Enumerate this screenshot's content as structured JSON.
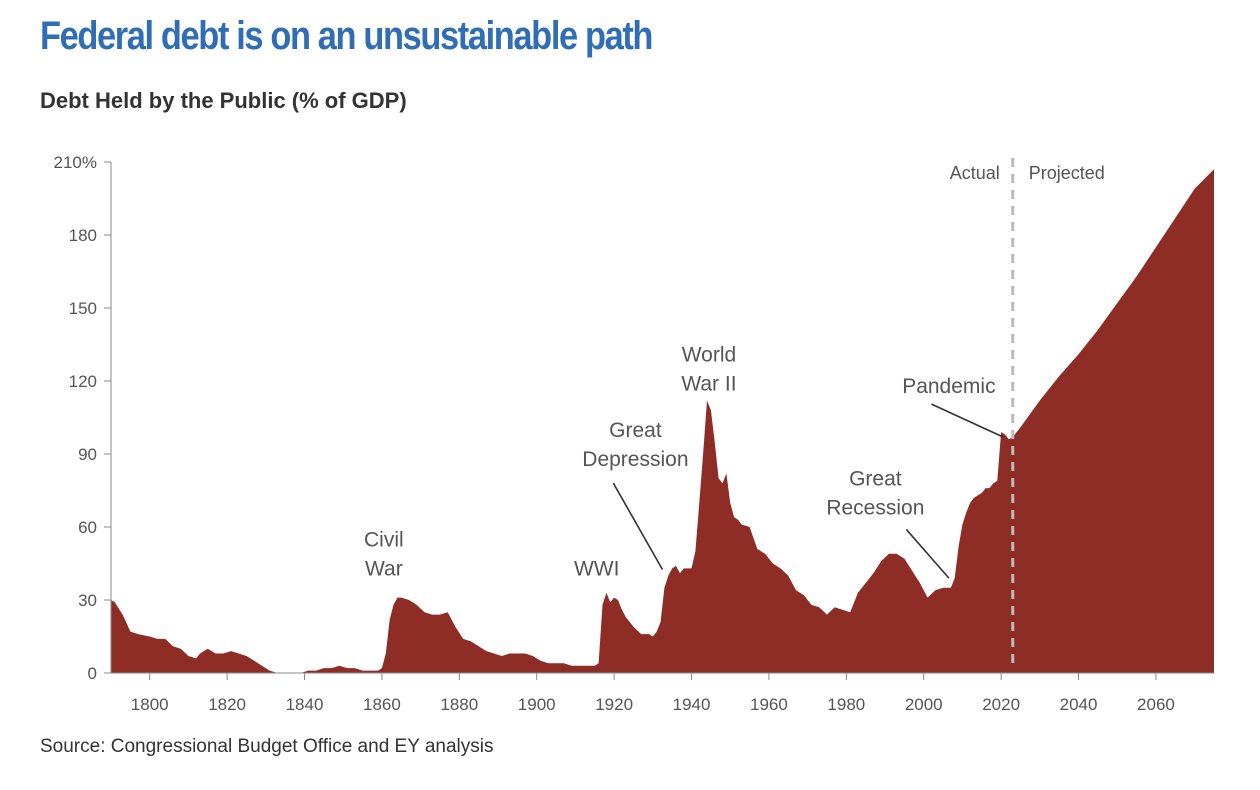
{
  "chart_data": {
    "type": "area",
    "title": "Federal debt is on an unsustainable path",
    "subtitle": "Debt Held by the Public (% of GDP)",
    "source": "Source: Congressional Budget Office and EY analysis",
    "color": "#8e2d26",
    "xlim": [
      1790,
      2075
    ],
    "ylim": [
      0,
      210
    ],
    "y_ticks": [
      {
        "value": 0,
        "label": "0"
      },
      {
        "value": 30,
        "label": "30"
      },
      {
        "value": 60,
        "label": "60"
      },
      {
        "value": 90,
        "label": "90"
      },
      {
        "value": 120,
        "label": "120"
      },
      {
        "value": 150,
        "label": "150"
      },
      {
        "value": 180,
        "label": "180"
      },
      {
        "value": 210,
        "label": "210%"
      }
    ],
    "x_ticks": [
      {
        "value": 1800,
        "label": "1800"
      },
      {
        "value": 1820,
        "label": "1820"
      },
      {
        "value": 1840,
        "label": "1840"
      },
      {
        "value": 1860,
        "label": "1860"
      },
      {
        "value": 1880,
        "label": "1880"
      },
      {
        "value": 1900,
        "label": "1900"
      },
      {
        "value": 1920,
        "label": "1920"
      },
      {
        "value": 1940,
        "label": "1940"
      },
      {
        "value": 1960,
        "label": "1960"
      },
      {
        "value": 1980,
        "label": "1980"
      },
      {
        "value": 2000,
        "label": "2000"
      },
      {
        "value": 2020,
        "label": "2020"
      },
      {
        "value": 2040,
        "label": "2040"
      },
      {
        "value": 2060,
        "label": "2060"
      }
    ],
    "divider": {
      "x": 2023,
      "left_label": "Actual",
      "right_label": "Projected"
    },
    "annotations": [
      {
        "id": "civil-war",
        "lines": [
          "Civil",
          "War"
        ],
        "x": 1860.5,
        "y": 52
      },
      {
        "id": "wwi",
        "lines": [
          "WWI"
        ],
        "x": 1915.5,
        "y": 40
      },
      {
        "id": "great-depression",
        "lines": [
          "Great",
          "Depression"
        ],
        "x": 1925.5,
        "y": 97,
        "pointer": [
          [
            1919.8,
            78
          ],
          [
            1932.5,
            42.5
          ]
        ]
      },
      {
        "id": "world-war-ii",
        "lines": [
          "World",
          "War II"
        ],
        "x": 1944.5,
        "y": 128
      },
      {
        "id": "great-recession",
        "lines": [
          "Great",
          "Recession"
        ],
        "x": 1987.5,
        "y": 77,
        "pointer": [
          [
            1995.5,
            59
          ],
          [
            2006.5,
            39
          ]
        ]
      },
      {
        "id": "pandemic",
        "lines": [
          "Pandemic"
        ],
        "x": 2006.5,
        "y": 115,
        "pointer": [
          [
            2002,
            110.5
          ],
          [
            2020.5,
            97
          ]
        ]
      }
    ],
    "series": [
      {
        "x": [
          1790,
          1791,
          1793,
          1795,
          1797,
          1800,
          1802,
          1804,
          1806,
          1808,
          1810,
          1812,
          1813,
          1815,
          1817,
          1819,
          1821,
          1823,
          1825,
          1827,
          1829,
          1831,
          1833,
          1835,
          1837,
          1839,
          1841,
          1843,
          1845,
          1847,
          1849,
          1851,
          1853,
          1855,
          1857,
          1859,
          1860,
          1861,
          1862,
          1863,
          1864,
          1865,
          1867,
          1869,
          1871,
          1873,
          1875,
          1877,
          1879,
          1881,
          1883,
          1885,
          1887,
          1889,
          1891,
          1893,
          1895,
          1897,
          1899,
          1901,
          1903,
          1905,
          1907,
          1909,
          1911,
          1913,
          1915,
          1916,
          1917,
          1918,
          1919,
          1920,
          1921,
          1922,
          1923,
          1925,
          1927,
          1929,
          1930,
          1931,
          1932,
          1933,
          1934,
          1935,
          1936,
          1937,
          1938,
          1939,
          1940,
          1941,
          1942,
          1943,
          1944,
          1945,
          1946,
          1947,
          1948,
          1949,
          1950,
          1951,
          1952,
          1953,
          1955,
          1957,
          1959,
          1961,
          1963,
          1965,
          1967,
          1969,
          1971,
          1973,
          1975,
          1977,
          1979,
          1981,
          1983,
          1985,
          1987,
          1989,
          1991,
          1993,
          1995,
          1997,
          1999,
          2001,
          2003,
          2005,
          2007,
          2008,
          2009,
          2010,
          2011,
          2012,
          2013,
          2014,
          2015,
          2016,
          2017,
          2018,
          2019,
          2020,
          2021,
          2022,
          2023,
          2025,
          2030,
          2035,
          2040,
          2045,
          2050,
          2055,
          2060,
          2065,
          2070,
          2075
        ],
        "y": [
          30,
          29,
          24,
          17,
          16,
          15,
          14,
          14,
          11,
          10,
          7,
          6,
          8,
          10,
          8,
          8,
          9,
          8,
          7,
          5,
          3,
          1,
          0,
          0,
          0,
          0,
          1,
          1,
          2,
          2,
          3,
          2,
          2,
          1,
          1,
          1,
          2,
          8,
          22,
          28,
          31,
          31,
          30,
          28,
          25,
          24,
          24,
          25,
          19,
          14,
          13,
          11,
          9,
          8,
          7,
          8,
          8,
          8,
          7,
          5,
          4,
          4,
          4,
          3,
          3,
          3,
          3,
          4,
          28,
          33,
          29,
          31,
          30,
          26,
          23,
          19,
          16,
          16,
          15,
          17,
          21,
          35,
          40,
          43,
          44,
          41,
          43,
          43,
          43,
          50,
          70,
          90,
          112,
          108,
          95,
          80,
          78,
          82,
          70,
          64,
          63,
          61,
          60,
          51,
          49,
          45,
          43,
          40,
          34,
          32,
          28,
          27,
          24,
          27,
          26,
          25,
          33,
          37,
          41,
          46,
          49,
          49,
          47,
          42,
          37,
          31,
          34,
          35,
          35,
          39,
          52,
          61,
          66,
          70,
          72,
          73,
          74,
          76,
          76,
          78,
          79,
          99,
          98,
          96,
          97,
          101,
          112,
          122,
          131,
          141,
          152,
          163,
          175,
          187,
          199,
          207
        ]
      }
    ]
  }
}
